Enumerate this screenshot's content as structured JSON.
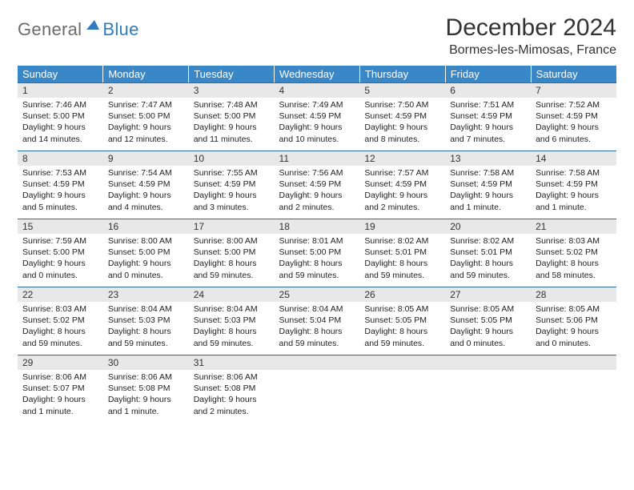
{
  "brand": {
    "word1": "General",
    "word2": "Blue"
  },
  "title": "December 2024",
  "subtitle": "Bormes-les-Mimosas, France",
  "colors": {
    "header_bg": "#3a87c7",
    "header_text": "#ffffff",
    "daynum_bg": "#e8e8e8",
    "daynum_border": "#2f6aa0",
    "logo_gray": "#6b6b6b",
    "logo_blue": "#2f7cc0"
  },
  "weekdays": [
    "Sunday",
    "Monday",
    "Tuesday",
    "Wednesday",
    "Thursday",
    "Friday",
    "Saturday"
  ],
  "weeks": [
    [
      {
        "day": "1",
        "sunrise": "Sunrise: 7:46 AM",
        "sunset": "Sunset: 5:00 PM",
        "daylight": "Daylight: 9 hours and 14 minutes."
      },
      {
        "day": "2",
        "sunrise": "Sunrise: 7:47 AM",
        "sunset": "Sunset: 5:00 PM",
        "daylight": "Daylight: 9 hours and 12 minutes."
      },
      {
        "day": "3",
        "sunrise": "Sunrise: 7:48 AM",
        "sunset": "Sunset: 5:00 PM",
        "daylight": "Daylight: 9 hours and 11 minutes."
      },
      {
        "day": "4",
        "sunrise": "Sunrise: 7:49 AM",
        "sunset": "Sunset: 4:59 PM",
        "daylight": "Daylight: 9 hours and 10 minutes."
      },
      {
        "day": "5",
        "sunrise": "Sunrise: 7:50 AM",
        "sunset": "Sunset: 4:59 PM",
        "daylight": "Daylight: 9 hours and 8 minutes."
      },
      {
        "day": "6",
        "sunrise": "Sunrise: 7:51 AM",
        "sunset": "Sunset: 4:59 PM",
        "daylight": "Daylight: 9 hours and 7 minutes."
      },
      {
        "day": "7",
        "sunrise": "Sunrise: 7:52 AM",
        "sunset": "Sunset: 4:59 PM",
        "daylight": "Daylight: 9 hours and 6 minutes."
      }
    ],
    [
      {
        "day": "8",
        "sunrise": "Sunrise: 7:53 AM",
        "sunset": "Sunset: 4:59 PM",
        "daylight": "Daylight: 9 hours and 5 minutes."
      },
      {
        "day": "9",
        "sunrise": "Sunrise: 7:54 AM",
        "sunset": "Sunset: 4:59 PM",
        "daylight": "Daylight: 9 hours and 4 minutes."
      },
      {
        "day": "10",
        "sunrise": "Sunrise: 7:55 AM",
        "sunset": "Sunset: 4:59 PM",
        "daylight": "Daylight: 9 hours and 3 minutes."
      },
      {
        "day": "11",
        "sunrise": "Sunrise: 7:56 AM",
        "sunset": "Sunset: 4:59 PM",
        "daylight": "Daylight: 9 hours and 2 minutes."
      },
      {
        "day": "12",
        "sunrise": "Sunrise: 7:57 AM",
        "sunset": "Sunset: 4:59 PM",
        "daylight": "Daylight: 9 hours and 2 minutes."
      },
      {
        "day": "13",
        "sunrise": "Sunrise: 7:58 AM",
        "sunset": "Sunset: 4:59 PM",
        "daylight": "Daylight: 9 hours and 1 minute."
      },
      {
        "day": "14",
        "sunrise": "Sunrise: 7:58 AM",
        "sunset": "Sunset: 4:59 PM",
        "daylight": "Daylight: 9 hours and 1 minute."
      }
    ],
    [
      {
        "day": "15",
        "sunrise": "Sunrise: 7:59 AM",
        "sunset": "Sunset: 5:00 PM",
        "daylight": "Daylight: 9 hours and 0 minutes."
      },
      {
        "day": "16",
        "sunrise": "Sunrise: 8:00 AM",
        "sunset": "Sunset: 5:00 PM",
        "daylight": "Daylight: 9 hours and 0 minutes."
      },
      {
        "day": "17",
        "sunrise": "Sunrise: 8:00 AM",
        "sunset": "Sunset: 5:00 PM",
        "daylight": "Daylight: 8 hours and 59 minutes."
      },
      {
        "day": "18",
        "sunrise": "Sunrise: 8:01 AM",
        "sunset": "Sunset: 5:00 PM",
        "daylight": "Daylight: 8 hours and 59 minutes."
      },
      {
        "day": "19",
        "sunrise": "Sunrise: 8:02 AM",
        "sunset": "Sunset: 5:01 PM",
        "daylight": "Daylight: 8 hours and 59 minutes."
      },
      {
        "day": "20",
        "sunrise": "Sunrise: 8:02 AM",
        "sunset": "Sunset: 5:01 PM",
        "daylight": "Daylight: 8 hours and 59 minutes."
      },
      {
        "day": "21",
        "sunrise": "Sunrise: 8:03 AM",
        "sunset": "Sunset: 5:02 PM",
        "daylight": "Daylight: 8 hours and 58 minutes."
      }
    ],
    [
      {
        "day": "22",
        "sunrise": "Sunrise: 8:03 AM",
        "sunset": "Sunset: 5:02 PM",
        "daylight": "Daylight: 8 hours and 59 minutes."
      },
      {
        "day": "23",
        "sunrise": "Sunrise: 8:04 AM",
        "sunset": "Sunset: 5:03 PM",
        "daylight": "Daylight: 8 hours and 59 minutes."
      },
      {
        "day": "24",
        "sunrise": "Sunrise: 8:04 AM",
        "sunset": "Sunset: 5:03 PM",
        "daylight": "Daylight: 8 hours and 59 minutes."
      },
      {
        "day": "25",
        "sunrise": "Sunrise: 8:04 AM",
        "sunset": "Sunset: 5:04 PM",
        "daylight": "Daylight: 8 hours and 59 minutes."
      },
      {
        "day": "26",
        "sunrise": "Sunrise: 8:05 AM",
        "sunset": "Sunset: 5:05 PM",
        "daylight": "Daylight: 8 hours and 59 minutes."
      },
      {
        "day": "27",
        "sunrise": "Sunrise: 8:05 AM",
        "sunset": "Sunset: 5:05 PM",
        "daylight": "Daylight: 9 hours and 0 minutes."
      },
      {
        "day": "28",
        "sunrise": "Sunrise: 8:05 AM",
        "sunset": "Sunset: 5:06 PM",
        "daylight": "Daylight: 9 hours and 0 minutes."
      }
    ],
    [
      {
        "day": "29",
        "sunrise": "Sunrise: 8:06 AM",
        "sunset": "Sunset: 5:07 PM",
        "daylight": "Daylight: 9 hours and 1 minute."
      },
      {
        "day": "30",
        "sunrise": "Sunrise: 8:06 AM",
        "sunset": "Sunset: 5:08 PM",
        "daylight": "Daylight: 9 hours and 1 minute."
      },
      {
        "day": "31",
        "sunrise": "Sunrise: 8:06 AM",
        "sunset": "Sunset: 5:08 PM",
        "daylight": "Daylight: 9 hours and 2 minutes."
      },
      null,
      null,
      null,
      null
    ]
  ]
}
